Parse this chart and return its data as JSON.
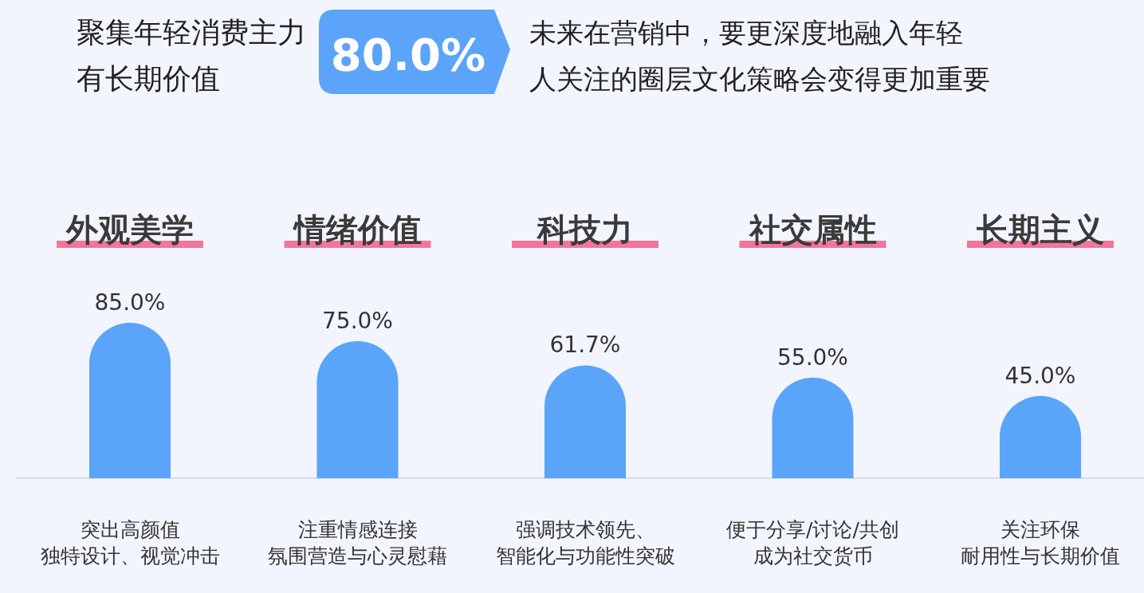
{
  "chart_data": {
    "type": "bar",
    "categories": [
      "外观美学",
      "情绪价值",
      "科技力",
      "社交属性",
      "长期主义"
    ],
    "values": [
      85.0,
      75.0,
      61.7,
      55.0,
      45.0
    ],
    "value_labels": [
      "85.0%",
      "75.0%",
      "61.7%",
      "55.0%",
      "45.0%"
    ],
    "color": "#5aa4fa",
    "annotations": [
      "聚集年轻消费主力",
      "有长期价值",
      "80.0%",
      "未来在营销中，要更深度地融入年轻",
      "人关注的圈层文化策略会变得更加重要",
      "突出高颜值",
      "独特设计、视觉冲击",
      "注重情感连接",
      "氛围营造与心灵慰藉",
      "强调技术领先、",
      "智能化与功能性突破",
      "便于分享/讨论/共创",
      "成为社交货币",
      "关注环保",
      "耐用性与长期价值"
    ]
  }
}
